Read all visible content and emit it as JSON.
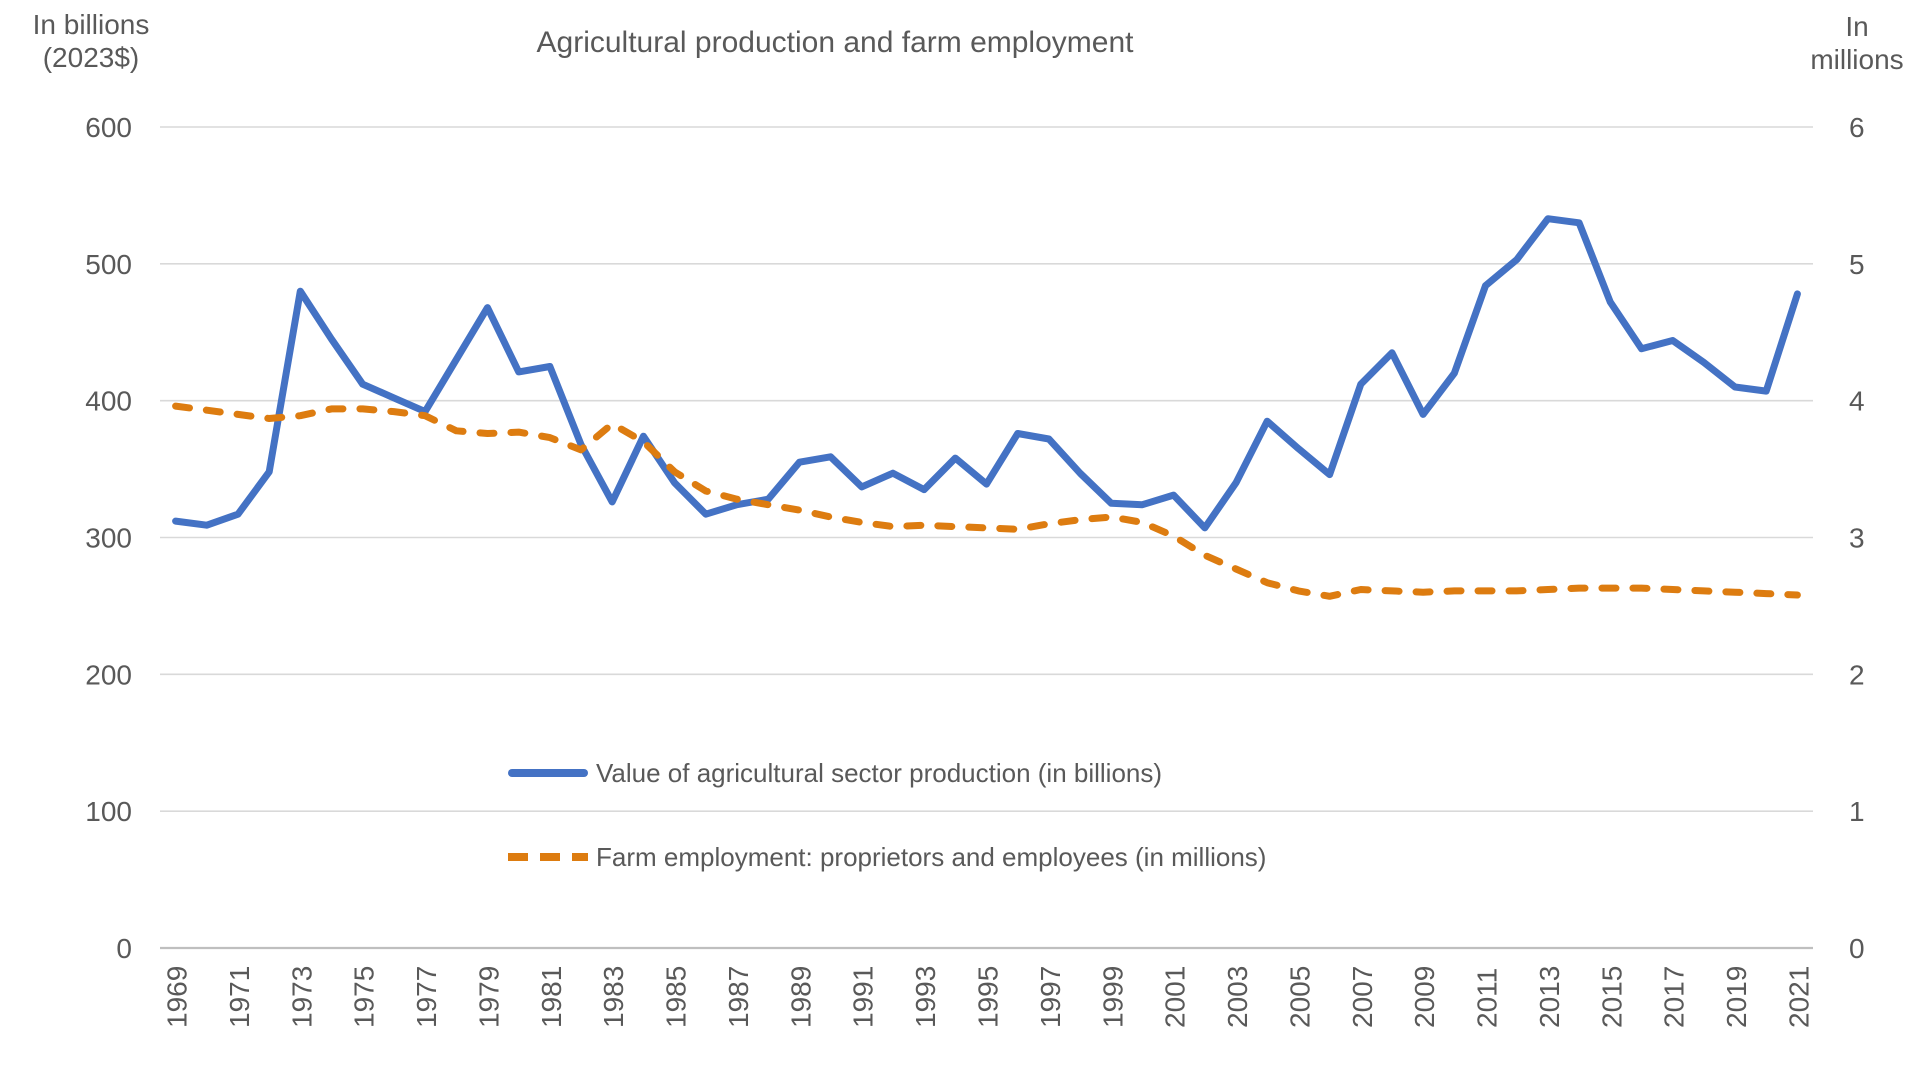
{
  "title": "Agricultural production and farm employment",
  "left_axis_header": {
    "line1": "In billions",
    "line2": "(2023$)"
  },
  "right_axis_header": {
    "line1": "In",
    "line2": "millions"
  },
  "colors": {
    "production_line": "#4472C4",
    "employment_line": "#DD7C10",
    "gridline": "#D9D9D9",
    "axis_line": "#BFBFBF",
    "text": "#595959"
  },
  "chart_data": {
    "type": "line",
    "title": "Agricultural production and farm employment",
    "grid": true,
    "legend_position": "inside-bottom-center",
    "x": [
      1969,
      1970,
      1971,
      1972,
      1973,
      1974,
      1975,
      1976,
      1977,
      1978,
      1979,
      1980,
      1981,
      1982,
      1983,
      1984,
      1985,
      1986,
      1987,
      1988,
      1989,
      1990,
      1991,
      1992,
      1993,
      1994,
      1995,
      1996,
      1997,
      1998,
      1999,
      2000,
      2001,
      2002,
      2003,
      2004,
      2005,
      2006,
      2007,
      2008,
      2009,
      2010,
      2011,
      2012,
      2013,
      2014,
      2015,
      2016,
      2017,
      2018,
      2019,
      2020,
      2021
    ],
    "x_tick_labels": [
      1969,
      1971,
      1973,
      1975,
      1977,
      1979,
      1981,
      1983,
      1985,
      1987,
      1989,
      1991,
      1993,
      1995,
      1997,
      1999,
      2001,
      2003,
      2005,
      2007,
      2009,
      2011,
      2013,
      2015,
      2017,
      2019,
      2021
    ],
    "left_axis": {
      "label": "In billions (2023$)",
      "min": 0,
      "max": 600,
      "step": 100,
      "ticks": [
        600,
        500,
        400,
        300,
        200,
        100,
        0
      ]
    },
    "right_axis": {
      "label": "In millions",
      "min": 0,
      "max": 6,
      "step": 1,
      "ticks": [
        6,
        5,
        4,
        3,
        2,
        1,
        0
      ]
    },
    "series": [
      {
        "name": "Value of agricultural sector production (in billions)",
        "axis": "left",
        "style": "solid",
        "color": "#4472C4",
        "values": [
          312,
          309,
          317,
          348,
          480,
          445,
          412,
          402,
          392,
          430,
          468,
          421,
          425,
          368,
          326,
          374,
          340,
          317,
          324,
          328,
          355,
          359,
          337,
          347,
          335,
          358,
          339,
          376,
          372,
          347,
          325,
          324,
          331,
          307,
          340,
          385,
          365,
          346,
          412,
          435,
          390,
          420,
          484,
          503,
          533,
          530,
          472,
          438,
          444,
          428,
          410,
          407,
          478
        ]
      },
      {
        "name": "Farm employment: proprietors and employees (in millions)",
        "axis": "right",
        "style": "dashed",
        "color": "#DD7C10",
        "values": [
          3.96,
          3.93,
          3.9,
          3.87,
          3.89,
          3.94,
          3.94,
          3.92,
          3.89,
          3.78,
          3.76,
          3.77,
          3.73,
          3.64,
          3.83,
          3.7,
          3.48,
          3.34,
          3.28,
          3.24,
          3.2,
          3.15,
          3.11,
          3.08,
          3.09,
          3.08,
          3.07,
          3.06,
          3.1,
          3.13,
          3.15,
          3.11,
          3.01,
          2.87,
          2.77,
          2.67,
          2.61,
          2.57,
          2.62,
          2.61,
          2.6,
          2.61,
          2.61,
          2.61,
          2.62,
          2.63,
          2.63,
          2.63,
          2.62,
          2.61,
          2.6,
          2.59,
          2.58
        ]
      }
    ]
  }
}
